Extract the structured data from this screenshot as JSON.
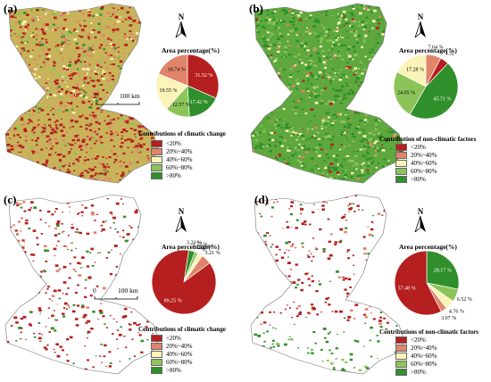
{
  "colors": {
    "lt20": "#b51f1f",
    "c20_40": "#e0846a",
    "c40_60": "#fbf3b8",
    "c60_80": "#8dc45a",
    "gt80": "#2f8f2a"
  },
  "panels": [
    {
      "id": "a",
      "label": "(a)",
      "pie_title": "Area percentage(%)",
      "legend_title": "Contributions of climatic change",
      "legend_items": [
        "<20%",
        "20%~40%",
        "40%~60%",
        "60%~80%",
        ">80%"
      ],
      "north": "N",
      "scale": {
        "zero": "0",
        "dist": "100 km"
      },
      "pie": [
        {
          "cls": "lt20",
          "value": 31.52,
          "label": "31.52 %"
        },
        {
          "cls": "gt80",
          "value": 17.42,
          "label": "17.42 %"
        },
        {
          "cls": "c60_80",
          "value": 12.57,
          "label": "12.57 %"
        },
        {
          "cls": "c40_60",
          "value": 19.55,
          "label": "19.55 %"
        },
        {
          "cls": "c20_40",
          "value": 18.74,
          "label": "18.74 %"
        }
      ]
    },
    {
      "id": "b",
      "label": "(b)",
      "pie_title": "Area percentage(%)",
      "legend_title": "Contribution of non-climatic factors",
      "legend_items": [
        "<20%",
        "20%~40%",
        "40%~60%",
        "60%~80%",
        ">80%"
      ],
      "north": "N",
      "scale": {
        "zero": "",
        "dist": ""
      },
      "pie": [
        {
          "cls": "c20_40",
          "value": 7.64,
          "label": "7.64 %"
        },
        {
          "cls": "lt20",
          "value": 4.32,
          "label": "4.32"
        },
        {
          "cls": "gt80",
          "value": 45.71,
          "label": "45.71 %"
        },
        {
          "cls": "c60_80",
          "value": 24.05,
          "label": "24.05 %"
        },
        {
          "cls": "c40_60",
          "value": 17.28,
          "label": "17.28 %"
        }
      ]
    },
    {
      "id": "c",
      "label": "(c)",
      "pie_title": "Area percentage(%)",
      "legend_title": "Contributions of climatic change",
      "legend_items": [
        "<20%",
        "20%~40%",
        "40%~60%",
        "60%~80%",
        ">80%"
      ],
      "north": "N",
      "scale": {
        "zero": "0",
        "dist": "100 km"
      },
      "pie": [
        {
          "cls": "gt80",
          "value": 3.23,
          "label": "3.23 %"
        },
        {
          "cls": "c60_80",
          "value": 1.72,
          "label": "1.72 %"
        },
        {
          "cls": "c40_60",
          "value": 2.59,
          "label": "2.59 %"
        },
        {
          "cls": "c20_40",
          "value": 5.21,
          "label": "5.21 %"
        },
        {
          "cls": "lt20",
          "value": 89.25,
          "label": "89.25 %"
        }
      ]
    },
    {
      "id": "d",
      "label": "(d)",
      "pie_title": "Area percentage(%)",
      "legend_title": "Contributions of non-climatic factors",
      "legend_items": [
        "<20%",
        "20%~40%",
        "40%~60%",
        "60%~80%",
        ">80%"
      ],
      "north": "N",
      "scale": {
        "zero": "",
        "dist": ""
      },
      "pie": [
        {
          "cls": "gt80",
          "value": 28.17,
          "label": "28.17 %"
        },
        {
          "cls": "c60_80",
          "value": 6.52,
          "label": "6.52 %"
        },
        {
          "cls": "c40_60",
          "value": 4.76,
          "label": "4.76 %"
        },
        {
          "cls": "c20_40",
          "value": 3.07,
          "label": "3.07 %"
        },
        {
          "cls": "lt20",
          "value": 57.48,
          "label": "57.48 %"
        }
      ]
    }
  ]
}
